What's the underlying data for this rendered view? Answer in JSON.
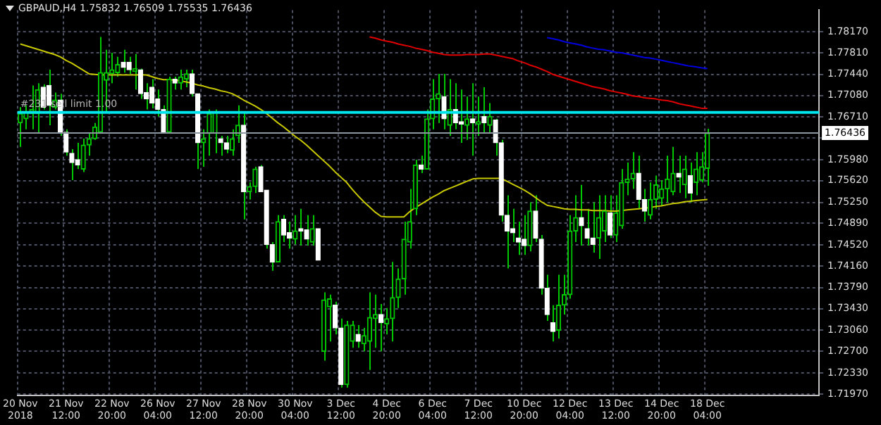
{
  "chart_data": {
    "type": "candlestick",
    "title": "GBPAUD,H4 1.75832 1.76509 1.75535 1.76436",
    "categories": [
      "20 Nov 2018",
      null,
      null,
      null,
      null,
      null,
      null,
      null,
      "21 Nov 12:00",
      null,
      null,
      null,
      null,
      null,
      null,
      null,
      "22 Nov 20:00",
      null,
      null,
      null,
      null,
      null,
      null,
      null,
      "26 Nov 04:00",
      null,
      null,
      null,
      null,
      null,
      null,
      null,
      "27 Nov 12:00",
      null,
      null,
      null,
      null,
      null,
      null,
      null,
      "28 Nov 20:00",
      null,
      null,
      null,
      null,
      null,
      null,
      null,
      "30 Nov 04:00",
      null,
      null,
      null,
      null,
      null,
      null,
      null,
      "3 Dec 12:00",
      null,
      null,
      null,
      null,
      null,
      null,
      null,
      "4 Dec 20:00",
      null,
      null,
      null,
      null,
      null,
      null,
      null,
      "6 Dec 04:00",
      null,
      null,
      null,
      null,
      null,
      null,
      null,
      "7 Dec 12:00",
      null,
      null,
      null,
      null,
      null,
      null,
      null,
      "10 Dec 20:00",
      null,
      null,
      null,
      null,
      null,
      null,
      null,
      "12 Dec 04:00",
      null,
      null,
      null,
      null,
      null,
      null,
      null,
      "13 Dec 12:00",
      null,
      null,
      null,
      null,
      null,
      null,
      null,
      "14 Dec 20:00",
      null,
      null,
      null,
      null,
      null,
      null,
      null,
      "18 Dec 04:00",
      null,
      null,
      null,
      null,
      null,
      null,
      null,
      null,
      null,
      null,
      null,
      null,
      null,
      null,
      null,
      null,
      null,
      null,
      null
    ],
    "ohlc": [
      [
        1.7661,
        1.7688,
        1.762,
        1.7677
      ],
      [
        1.7668,
        1.7691,
        1.765,
        1.7679
      ],
      [
        1.7677,
        1.7725,
        1.765,
        1.7684
      ],
      [
        1.7677,
        1.7729,
        1.7645,
        1.7718
      ],
      [
        1.7722,
        1.7727,
        1.7684,
        1.7688
      ],
      [
        1.7725,
        1.7752,
        1.7657,
        1.7691
      ],
      [
        1.7688,
        1.7713,
        1.7684,
        1.77
      ],
      [
        1.77,
        1.7711,
        1.7639,
        1.7645
      ],
      [
        1.7645,
        1.765,
        1.7605,
        1.7611
      ],
      [
        1.7609,
        1.7616,
        1.7563,
        1.7593
      ],
      [
        1.7598,
        1.7627,
        1.7582,
        1.7589
      ],
      [
        1.7582,
        1.7634,
        1.7577,
        1.7623
      ],
      [
        1.7623,
        1.7645,
        1.7605,
        1.7634
      ],
      [
        1.7634,
        1.7661,
        1.7632,
        1.7654
      ],
      [
        1.7645,
        1.7808,
        1.7643,
        1.7747
      ],
      [
        1.7734,
        1.7786,
        1.7679,
        1.7747
      ],
      [
        1.7745,
        1.7781,
        1.7729,
        1.7752
      ],
      [
        1.7747,
        1.7774,
        1.774,
        1.7761
      ],
      [
        1.7765,
        1.7786,
        1.7747,
        1.7756
      ],
      [
        1.7765,
        1.7774,
        1.7745,
        1.7752
      ],
      [
        1.7749,
        1.7779,
        1.7718,
        1.7754
      ],
      [
        1.7752,
        1.7754,
        1.7702,
        1.7711
      ],
      [
        1.7713,
        1.7729,
        1.7684,
        1.7702
      ],
      [
        1.7722,
        1.7736,
        1.7686,
        1.7695
      ],
      [
        1.7702,
        1.7718,
        1.7672,
        1.7684
      ],
      [
        1.7684,
        1.7691,
        1.7645,
        1.7645
      ],
      [
        1.7645,
        1.774,
        1.7645,
        1.7736
      ],
      [
        1.7736,
        1.774,
        1.7718,
        1.7729
      ],
      [
        1.7729,
        1.7752,
        1.7718,
        1.774
      ],
      [
        1.7736,
        1.7752,
        1.7722,
        1.7745
      ],
      [
        1.7745,
        1.7752,
        1.7706,
        1.7711
      ],
      [
        1.7711,
        1.7711,
        1.7582,
        1.7627
      ],
      [
        1.7627,
        1.765,
        1.7586,
        1.7634
      ],
      [
        1.7643,
        1.7684,
        1.7605,
        1.7677
      ],
      [
        1.7643,
        1.7684,
        1.7609,
        1.7679
      ],
      [
        1.7634,
        1.7639,
        1.7605,
        1.7627
      ],
      [
        1.7627,
        1.7639,
        1.7609,
        1.7616
      ],
      [
        1.7614,
        1.765,
        1.7605,
        1.7634
      ],
      [
        1.7639,
        1.7691,
        1.7627,
        1.7657
      ],
      [
        1.7657,
        1.7679,
        1.7496,
        1.7543
      ],
      [
        1.7543,
        1.7559,
        1.753,
        1.7552
      ],
      [
        1.7552,
        1.7586,
        1.7541,
        1.7582
      ],
      [
        1.7586,
        1.7589,
        1.7543,
        1.7543
      ],
      [
        1.7546,
        1.7546,
        1.7446,
        1.7453
      ],
      [
        1.7453,
        1.7457,
        1.7408,
        1.7423
      ],
      [
        1.7423,
        1.7503,
        1.7423,
        1.7492
      ],
      [
        1.7496,
        1.7503,
        1.7457,
        1.7469
      ],
      [
        1.7473,
        1.7492,
        1.7446,
        1.7464
      ],
      [
        1.7462,
        1.7503,
        1.7453,
        1.7476
      ],
      [
        1.748,
        1.7514,
        1.7451,
        1.7476
      ],
      [
        1.7478,
        1.7503,
        1.7451,
        1.7462
      ],
      [
        1.7457,
        1.7503,
        1.7451,
        1.748
      ],
      [
        1.748,
        1.748,
        1.7426,
        1.7426
      ],
      [
        1.727,
        1.7371,
        1.7254,
        1.7358
      ],
      [
        1.7346,
        1.7367,
        1.7287,
        1.736
      ],
      [
        1.7349,
        1.7355,
        1.7299,
        1.731
      ],
      [
        1.731,
        1.7326,
        1.7208,
        1.7213
      ],
      [
        1.7213,
        1.7322,
        1.7208,
        1.7315
      ],
      [
        1.7287,
        1.7322,
        1.7276,
        1.7315
      ],
      [
        1.7299,
        1.7315,
        1.7276,
        1.7287
      ],
      [
        1.7283,
        1.731,
        1.727,
        1.7297
      ],
      [
        1.7287,
        1.7371,
        1.7238,
        1.7328
      ],
      [
        1.7326,
        1.7367,
        1.7276,
        1.7333
      ],
      [
        1.7333,
        1.7351,
        1.727,
        1.7319
      ],
      [
        1.7317,
        1.7344,
        1.7299,
        1.7326
      ],
      [
        1.7326,
        1.7423,
        1.7287,
        1.7362
      ],
      [
        1.7362,
        1.7412,
        1.7344,
        1.7394
      ],
      [
        1.7394,
        1.7492,
        1.7367,
        1.7462
      ],
      [
        1.7457,
        1.7548,
        1.7446,
        1.7492
      ],
      [
        1.7514,
        1.7598,
        1.7503,
        1.7589
      ],
      [
        1.7589,
        1.7605,
        1.7575,
        1.7582
      ],
      [
        1.7582,
        1.7684,
        1.7582,
        1.7668
      ],
      [
        1.7668,
        1.7736,
        1.765,
        1.7702
      ],
      [
        1.7702,
        1.7745,
        1.7661,
        1.7711
      ],
      [
        1.7706,
        1.7745,
        1.765,
        1.7668
      ],
      [
        1.7657,
        1.7736,
        1.7639,
        1.7684
      ],
      [
        1.7684,
        1.7729,
        1.765,
        1.7661
      ],
      [
        1.7663,
        1.7718,
        1.7627,
        1.7659
      ],
      [
        1.7657,
        1.7706,
        1.7632,
        1.7668
      ],
      [
        1.7668,
        1.7729,
        1.7605,
        1.7661
      ],
      [
        1.7659,
        1.7706,
        1.7639,
        1.7663
      ],
      [
        1.7672,
        1.7722,
        1.7645,
        1.7661
      ],
      [
        1.7657,
        1.7695,
        1.7645,
        1.7672
      ],
      [
        1.7666,
        1.7668,
        1.7605,
        1.7627
      ],
      [
        1.7627,
        1.7632,
        1.7492,
        1.7503
      ],
      [
        1.7503,
        1.7537,
        1.7412,
        1.7476
      ],
      [
        1.748,
        1.7514,
        1.7457,
        1.7473
      ],
      [
        1.7464,
        1.7492,
        1.7435,
        1.7457
      ],
      [
        1.7462,
        1.7503,
        1.7435,
        1.7451
      ],
      [
        1.7451,
        1.7525,
        1.7441,
        1.751
      ],
      [
        1.751,
        1.7537,
        1.7457,
        1.7464
      ],
      [
        1.7462,
        1.7469,
        1.7367,
        1.7378
      ],
      [
        1.7378,
        1.7401,
        1.7322,
        1.7333
      ],
      [
        1.7319,
        1.7349,
        1.7287,
        1.7304
      ],
      [
        1.7306,
        1.7401,
        1.7292,
        1.7349
      ],
      [
        1.7349,
        1.7401,
        1.7333,
        1.7367
      ],
      [
        1.7367,
        1.7503,
        1.736,
        1.7476
      ],
      [
        1.7476,
        1.7537,
        1.7457,
        1.7499
      ],
      [
        1.7499,
        1.7555,
        1.7451,
        1.7485
      ],
      [
        1.748,
        1.7514,
        1.7451,
        1.7464
      ],
      [
        1.7464,
        1.7525,
        1.7439,
        1.7453
      ],
      [
        1.7464,
        1.7537,
        1.7428,
        1.7499
      ],
      [
        1.7476,
        1.7537,
        1.7457,
        1.751
      ],
      [
        1.7507,
        1.7537,
        1.7464,
        1.7469
      ],
      [
        1.7469,
        1.7537,
        1.7457,
        1.7507
      ],
      [
        1.7485,
        1.7582,
        1.748,
        1.7559
      ],
      [
        1.7559,
        1.7593,
        1.7537,
        1.7565
      ],
      [
        1.7565,
        1.7611,
        1.7548,
        1.7575
      ],
      [
        1.7575,
        1.7605,
        1.7514,
        1.753
      ],
      [
        1.753,
        1.7548,
        1.7492,
        1.751
      ],
      [
        1.7503,
        1.7559,
        1.7496,
        1.753
      ],
      [
        1.753,
        1.7571,
        1.7514,
        1.7555
      ],
      [
        1.7532,
        1.7563,
        1.7519,
        1.7548
      ],
      [
        1.7548,
        1.7605,
        1.7525,
        1.7565
      ],
      [
        1.7543,
        1.762,
        1.7537,
        1.7575
      ],
      [
        1.7575,
        1.7605,
        1.7541,
        1.7568
      ],
      [
        1.7555,
        1.7605,
        1.7532,
        1.7582
      ],
      [
        1.7571,
        1.7593,
        1.7525,
        1.7541
      ],
      [
        1.7559,
        1.7611,
        1.7537,
        1.7582
      ],
      [
        1.7563,
        1.7611,
        1.7559,
        1.7586
      ],
      [
        1.75832,
        1.76509,
        1.75535,
        1.76436
      ],
      null,
      null,
      null,
      null,
      null,
      null,
      null,
      null,
      null,
      null,
      null,
      null,
      null,
      null,
      null,
      null,
      null,
      null,
      null
    ],
    "series": [
      {
        "type": "line",
        "color": "#c8c800",
        "values": [
          1.7796,
          1.7793,
          1.779,
          1.7787,
          1.7784,
          1.7781,
          1.7778,
          1.7774,
          1.7768,
          1.7763,
          1.7757,
          1.7751,
          1.7745,
          1.7744,
          1.7743,
          1.7743,
          1.7743,
          1.7743,
          1.7743,
          1.7743,
          1.7743,
          1.7743,
          1.7743,
          1.774,
          1.7737,
          1.7735,
          1.7735,
          1.7734,
          1.7733,
          1.7731,
          1.7729,
          1.7726,
          1.7724,
          1.7721,
          1.7719,
          1.7716,
          1.7714,
          1.7711,
          1.7706,
          1.77,
          1.7695,
          1.769,
          1.7684,
          1.7677,
          1.7669,
          1.7661,
          1.7654,
          1.7646,
          1.7638,
          1.7631,
          1.7623,
          1.7614,
          1.7605,
          1.7596,
          1.7587,
          1.7577,
          1.7568,
          1.7559,
          1.7547,
          1.7536,
          1.7526,
          1.7517,
          1.7508,
          1.7501,
          1.75,
          1.75,
          1.75,
          1.75,
          1.7509,
          1.7516,
          1.7522,
          1.7528,
          1.7534,
          1.7539,
          1.7545,
          1.7549,
          1.7553,
          1.7557,
          1.7561,
          1.7565,
          1.7566,
          1.7566,
          1.7566,
          1.7566,
          1.7566,
          1.7561,
          1.7556,
          1.7551,
          1.7546,
          1.754,
          1.7533,
          1.7526,
          1.752,
          1.7518,
          1.7516,
          1.7514,
          1.7513,
          1.7513,
          1.7512,
          1.7512,
          1.7511,
          1.7511,
          1.7511,
          1.751,
          1.751,
          1.7511,
          1.7512,
          1.7513,
          1.7514,
          1.7515,
          1.7516,
          1.7518,
          1.7519,
          1.7521,
          1.7523,
          1.7524,
          1.7526,
          1.7527,
          1.7528,
          1.7529,
          1.753,
          null,
          null,
          null,
          null,
          null,
          null,
          null,
          null,
          null,
          null,
          null,
          null,
          null,
          null,
          null,
          null,
          null,
          null,
          null
        ]
      },
      {
        "type": "line",
        "color": "#e00000",
        "values": [
          null,
          null,
          null,
          null,
          null,
          null,
          null,
          null,
          null,
          null,
          null,
          null,
          null,
          null,
          null,
          null,
          null,
          null,
          null,
          null,
          null,
          null,
          null,
          null,
          null,
          null,
          null,
          null,
          null,
          null,
          null,
          null,
          null,
          null,
          null,
          null,
          null,
          null,
          null,
          null,
          null,
          null,
          null,
          null,
          null,
          null,
          null,
          null,
          null,
          null,
          null,
          null,
          null,
          null,
          null,
          null,
          null,
          null,
          null,
          null,
          null,
          1.7808,
          1.7806,
          1.7803,
          1.7801,
          1.7799,
          1.7796,
          1.7794,
          1.7792,
          1.7789,
          1.7787,
          1.7785,
          1.7782,
          1.778,
          1.7778,
          1.7777,
          1.7777,
          1.7777,
          1.7778,
          1.7778,
          1.7778,
          1.7779,
          1.7779,
          1.7777,
          1.7775,
          1.7773,
          1.7771,
          1.7767,
          1.7764,
          1.776,
          1.7757,
          1.7753,
          1.7749,
          1.7744,
          1.7741,
          1.7738,
          1.7735,
          1.7732,
          1.7729,
          1.7726,
          1.7723,
          1.7721,
          1.7719,
          1.7716,
          1.7714,
          1.7712,
          1.771,
          1.7707,
          1.7706,
          1.7704,
          1.7703,
          1.7702,
          1.77,
          1.7699,
          1.7697,
          1.7694,
          1.7692,
          1.769,
          1.7688,
          1.7686,
          1.7686,
          null,
          null,
          null,
          null,
          null,
          null,
          null,
          null,
          null,
          null,
          null,
          null,
          null,
          null,
          null,
          null,
          null,
          null,
          null
        ]
      },
      {
        "type": "line",
        "color": "#0000e0",
        "values": [
          null,
          null,
          null,
          null,
          null,
          null,
          null,
          null,
          null,
          null,
          null,
          null,
          null,
          null,
          null,
          null,
          null,
          null,
          null,
          null,
          null,
          null,
          null,
          null,
          null,
          null,
          null,
          null,
          null,
          null,
          null,
          null,
          null,
          null,
          null,
          null,
          null,
          null,
          null,
          null,
          null,
          null,
          null,
          null,
          null,
          null,
          null,
          null,
          null,
          null,
          null,
          null,
          null,
          null,
          null,
          null,
          null,
          null,
          null,
          null,
          null,
          null,
          null,
          null,
          null,
          null,
          null,
          null,
          null,
          null,
          null,
          null,
          null,
          null,
          null,
          null,
          null,
          null,
          null,
          null,
          null,
          null,
          null,
          null,
          null,
          null,
          null,
          null,
          null,
          null,
          null,
          null,
          1.7807,
          1.7805,
          1.7803,
          1.78,
          1.7798,
          1.7796,
          1.7794,
          1.7791,
          1.7789,
          1.7787,
          1.7786,
          1.7784,
          1.7782,
          1.7781,
          1.7779,
          1.7777,
          1.7775,
          1.7773,
          1.7772,
          1.777,
          1.7768,
          1.7766,
          1.7764,
          1.7762,
          1.776,
          1.7758,
          1.7757,
          1.7755,
          1.7754,
          null,
          null,
          null,
          null,
          null,
          null,
          null,
          null,
          null,
          null,
          null,
          null,
          null,
          null,
          null,
          null,
          null,
          null,
          null
        ]
      }
    ],
    "ylim": [
      1.7194,
      1.7854
    ],
    "yticks": [
      {
        "value": 1.7817,
        "label": "1.78170"
      },
      {
        "value": 1.7781,
        "label": "1.77810"
      },
      {
        "value": 1.7744,
        "label": "1.77440"
      },
      {
        "value": 1.7708,
        "label": "1.77080"
      },
      {
        "value": 1.7671,
        "label": "1.76710"
      },
      {
        "value": 1.7635,
        "label": null
      },
      {
        "value": 1.7598,
        "label": "1.75980"
      },
      {
        "value": 1.7562,
        "label": "1.75620"
      },
      {
        "value": 1.7525,
        "label": "1.75250"
      },
      {
        "value": 1.7489,
        "label": "1.74890"
      },
      {
        "value": 1.7452,
        "label": "1.74520"
      },
      {
        "value": 1.7416,
        "label": "1.74160"
      },
      {
        "value": 1.7379,
        "label": "1.73790"
      },
      {
        "value": 1.7343,
        "label": "1.73430"
      },
      {
        "value": 1.7306,
        "label": "1.73060"
      },
      {
        "value": 1.727,
        "label": "1.72700"
      },
      {
        "value": 1.7233,
        "label": "1.72330"
      },
      {
        "value": 1.7197,
        "label": "1.71970"
      }
    ],
    "grid": true,
    "ref_lines": [
      {
        "axis": "y",
        "value": 1.7679,
        "label": "#231 sell limit 1.00",
        "color": "#00e5ee"
      },
      {
        "axis": "y",
        "value": 1.76436,
        "label": "1.76436",
        "color": "#8c96a0"
      }
    ]
  }
}
